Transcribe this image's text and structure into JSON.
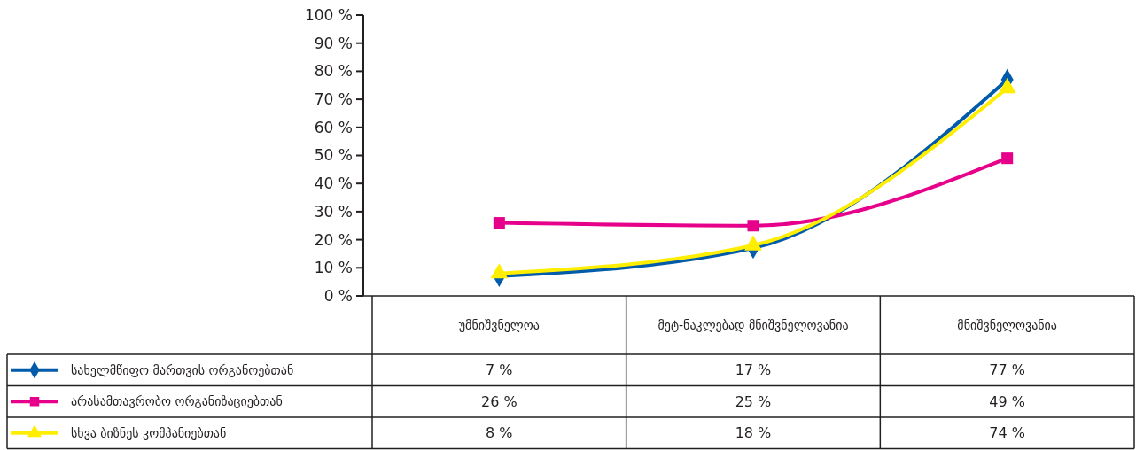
{
  "chart_data": {
    "type": "line",
    "categories": [
      "უმნიშვნელოა",
      "მეტ-ნაკლებად მნიშვნელოვანია",
      "მნიშვნელოვანია"
    ],
    "ylim": [
      0,
      100
    ],
    "yticks": [
      {
        "value": 0,
        "label": "0 %"
      },
      {
        "value": 10,
        "label": "10 %"
      },
      {
        "value": 20,
        "label": "20 %"
      },
      {
        "value": 30,
        "label": "30 %"
      },
      {
        "value": 40,
        "label": "40 %"
      },
      {
        "value": 50,
        "label": "50 %"
      },
      {
        "value": 60,
        "label": "60 %"
      },
      {
        "value": 70,
        "label": "70 %"
      },
      {
        "value": 80,
        "label": "80 %"
      },
      {
        "value": 90,
        "label": "90 %"
      },
      {
        "value": 100,
        "label": "100 %"
      }
    ],
    "series": [
      {
        "name": "სახელმწიფო მართვის ორგანოებთან",
        "color": "#005baa",
        "marker": "diamond",
        "values": [
          7,
          17,
          77
        ],
        "value_labels": [
          "7 %",
          "17 %",
          "77 %"
        ]
      },
      {
        "name": "არასამთავრობო ორგანიზაციებთან",
        "color": "#e6008a",
        "marker": "square",
        "values": [
          26,
          25,
          49
        ],
        "value_labels": [
          "26 %",
          "25 %",
          "49 %"
        ]
      },
      {
        "name": "სხვა ბიზნეს კომპანიებთან",
        "color": "#ffee00",
        "marker": "triangle",
        "values": [
          8,
          18,
          74
        ],
        "value_labels": [
          "8 %",
          "18 %",
          "74 %"
        ]
      }
    ],
    "legend": "bottom left",
    "grid": false
  }
}
